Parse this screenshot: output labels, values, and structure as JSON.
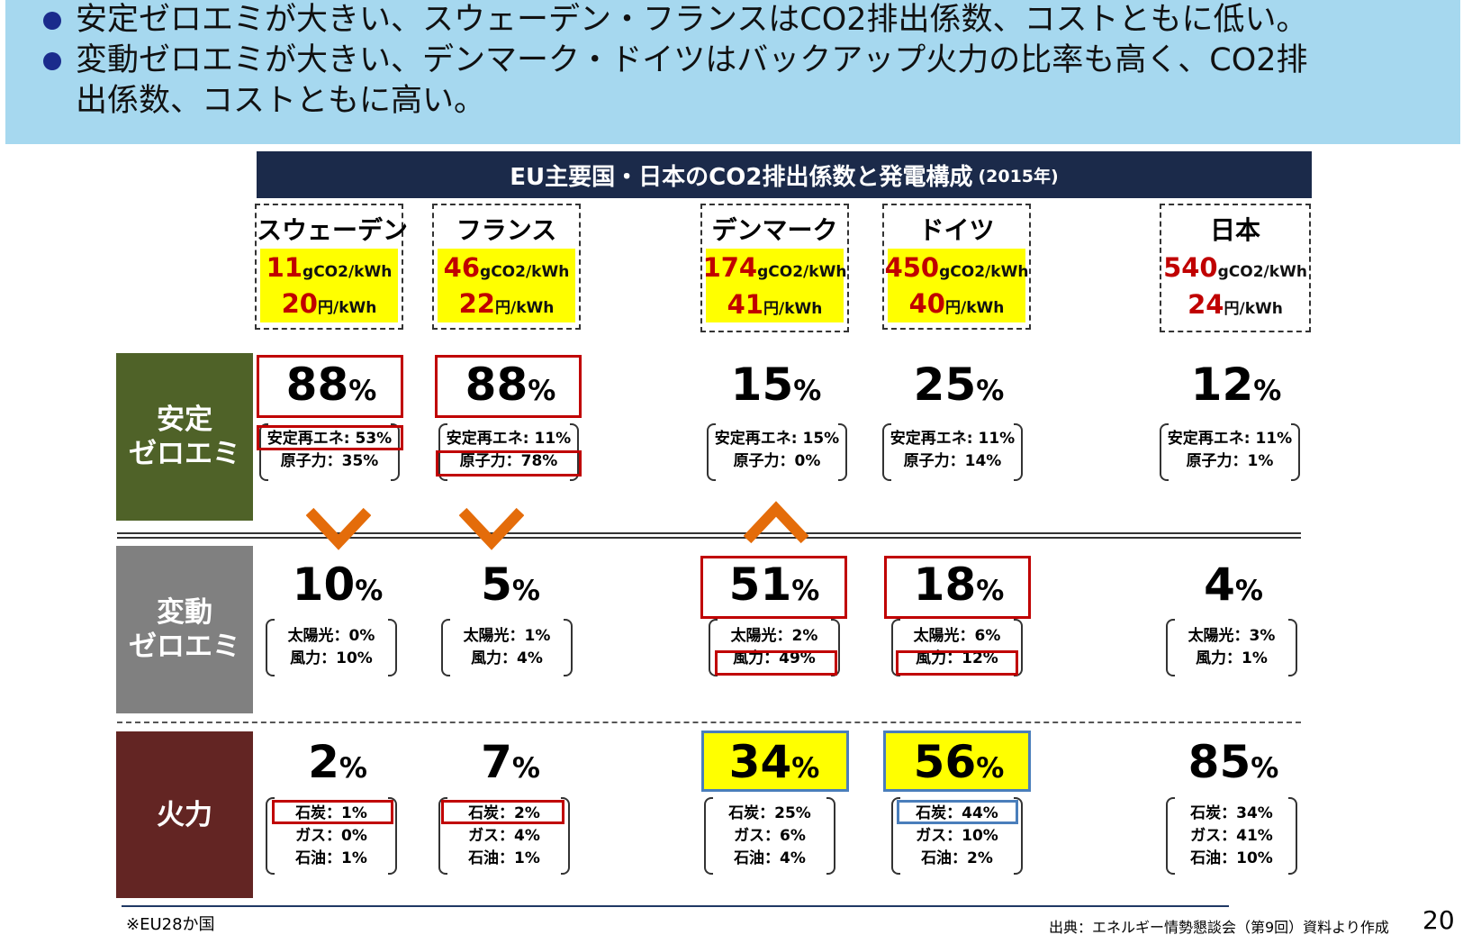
{
  "header": {
    "bullets": [
      "安定ゼロエミが大きい、スウェーデン・フランスはCO2排出係数、コストともに低い。",
      "変動ゼロエミが大きい、デンマーク・ドイツはバックアップ火力の比率も高く、CO2排",
      "出係数、コストともに高い。"
    ]
  },
  "title": {
    "main": "EU主要国・日本のCO2排出係数と発電構成",
    "year": "(2015年)"
  },
  "units": {
    "co2": "gCO2/kWh",
    "cost": "円/kWh",
    "percent": "%"
  },
  "countries": [
    {
      "name": "スウェーデン",
      "co2": "11",
      "cost": "20",
      "stable": "88",
      "stable_re": "安定再エネ: 53%",
      "stable_nuc": "原子力：35%",
      "var": "10",
      "solar": "太陽光：0%",
      "wind": "風力：10%",
      "fire": "2",
      "coal": "石炭：1%",
      "gas": "ガス：0%",
      "oil": "石油：1%"
    },
    {
      "name": "フランス",
      "co2": "46",
      "cost": "22",
      "stable": "88",
      "stable_re": "安定再エネ: 11%",
      "stable_nuc": "原子力：78%",
      "var": "5",
      "solar": "太陽光：1%",
      "wind": "風力：4%",
      "fire": "7",
      "coal": "石炭：2%",
      "gas": "ガス：4%",
      "oil": "石油：1%"
    },
    {
      "name": "デンマーク",
      "co2": "174",
      "cost": "41",
      "stable": "15",
      "stable_re": "安定再エネ: 15%",
      "stable_nuc": "原子力：0%",
      "var": "51",
      "solar": "太陽光：2%",
      "wind": "風力：49%",
      "fire": "34",
      "coal": "石炭：25%",
      "gas": "ガス：6%",
      "oil": "石油：4%"
    },
    {
      "name": "ドイツ",
      "co2": "450",
      "cost": "40",
      "stable": "25",
      "stable_re": "安定再エネ: 11%",
      "stable_nuc": "原子力：14%",
      "var": "18",
      "solar": "太陽光：6%",
      "wind": "風力：12%",
      "fire": "56",
      "coal": "石炭：44%",
      "gas": "ガス：10%",
      "oil": "石油：2%"
    },
    {
      "name": "日本",
      "co2": "540",
      "cost": "24",
      "stable": "12",
      "stable_re": "安定再エネ: 11%",
      "stable_nuc": "原子力：1%",
      "var": "4",
      "solar": "太陽光：3%",
      "wind": "風力：1%",
      "fire": "85",
      "coal": "石炭：34%",
      "gas": "ガス：41%",
      "oil": "石油：10%"
    }
  ],
  "rows": {
    "stable": [
      "安定",
      "ゼロエミ"
    ],
    "variable": [
      "変動",
      "ゼロエミ"
    ],
    "thermal": [
      "火力"
    ]
  },
  "colors": {
    "stable": "#4f6228",
    "variable": "#808080",
    "thermal": "#632523",
    "arrow": "#e46c0a"
  },
  "footer": {
    "note": "※EU28か国",
    "source": "出典：エネルギー情勢懇談会（第9回）資料より作成",
    "page": "20"
  }
}
